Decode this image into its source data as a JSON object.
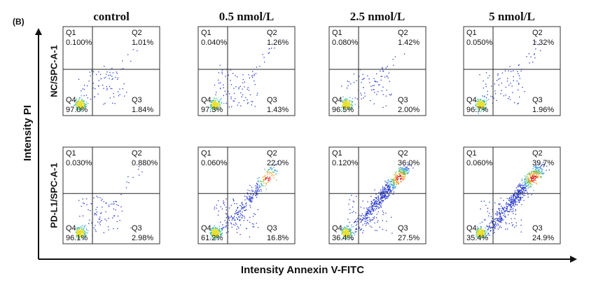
{
  "figure": {
    "panel_label": "(B)",
    "y_axis_label": "Intensity PI",
    "x_axis_label": "Intensity Annexin V-FITC",
    "columns": [
      "control",
      "0.5 nmol/L",
      "2.5 nmol/L",
      "5 nmol/L"
    ],
    "quadrant_names": [
      "Q1",
      "Q2",
      "Q3",
      "Q4"
    ],
    "rows": [
      {
        "label": "NC/SPC-A-1",
        "panels": [
          {
            "q1": "0.100%",
            "q2": "1.01%",
            "q3": "1.84%",
            "q4": "97.0%"
          },
          {
            "q1": "0.040%",
            "q2": "1.26%",
            "q3": "1.43%",
            "q4": "97.3%"
          },
          {
            "q1": "0.080%",
            "q2": "1.42%",
            "q3": "2.00%",
            "q4": "96.5%"
          },
          {
            "q1": "0.050%",
            "q2": "1.32%",
            "q3": "1.96%",
            "q4": "96.7%"
          }
        ]
      },
      {
        "label": "PD-L1/SPC-A-1",
        "panels": [
          {
            "q1": "0.030%",
            "q2": "0.880%",
            "q3": "2.98%",
            "q4": "96.1%"
          },
          {
            "q1": "0.060%",
            "q2": "22.0%",
            "q3": "16.8%",
            "q4": "61.2%"
          },
          {
            "q1": "0.120%",
            "q2": "36.0%",
            "q3": "27.5%",
            "q4": "36.4%"
          },
          {
            "q1": "0.060%",
            "q2": "39.7%",
            "q3": "24.9%",
            "q4": "35.4%"
          }
        ]
      }
    ]
  }
}
